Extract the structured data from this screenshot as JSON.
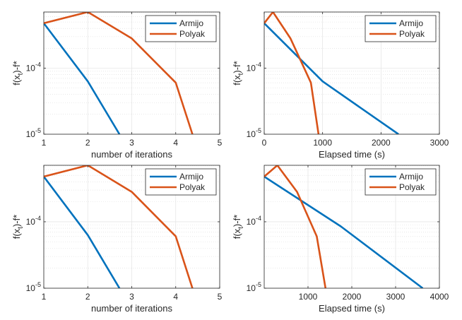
{
  "chart_data": [
    {
      "type": "line",
      "yscale": "log",
      "xlabel": "number of iterations",
      "ylabel_main": "f(x",
      "ylabel_sub": "t",
      "ylabel_tail": ")-f*",
      "xlim": [
        1,
        5
      ],
      "ylim_exp": [
        -5,
        -3.15
      ],
      "xticks": [
        1,
        2,
        3,
        4,
        5
      ],
      "xtick_labels": [
        "1",
        "2",
        "3",
        "4",
        "5"
      ],
      "yticks_exp": [
        -5,
        -4
      ],
      "ytick_base": "10",
      "ytick_exponents": [
        "-5",
        "-4"
      ],
      "grid": true,
      "legend_position": "top-right",
      "series": [
        {
          "name": "Armijo",
          "color": "#0072BD",
          "x": [
            1,
            2,
            2.72
          ],
          "y_exp": [
            -3.32,
            -4.2,
            -5.0
          ]
        },
        {
          "name": "Polyak",
          "color": "#D95319",
          "x": [
            1,
            2,
            3,
            4,
            4.38
          ],
          "y_exp": [
            -3.32,
            -3.15,
            -3.55,
            -4.22,
            -5.0
          ]
        }
      ]
    },
    {
      "type": "line",
      "yscale": "log",
      "xlabel": "Elapsed time (s)",
      "ylabel_main": "f(x",
      "ylabel_sub": "t",
      "ylabel_tail": ")-f*",
      "xlim": [
        0,
        3000
      ],
      "ylim_exp": [
        -5,
        -3.15
      ],
      "xticks": [
        0,
        1000,
        2000,
        3000
      ],
      "xtick_labels": [
        "0",
        "1000",
        "2000",
        "3000"
      ],
      "yticks_exp": [
        -5,
        -4
      ],
      "ytick_base": "10",
      "ytick_exponents": [
        "-5",
        "-4"
      ],
      "grid": true,
      "legend_position": "top-right",
      "series": [
        {
          "name": "Armijo",
          "color": "#0072BD",
          "x": [
            0,
            1000,
            2300
          ],
          "y_exp": [
            -3.32,
            -4.2,
            -5.0
          ]
        },
        {
          "name": "Polyak",
          "color": "#D95319",
          "x": [
            0,
            150,
            450,
            800,
            930
          ],
          "y_exp": [
            -3.32,
            -3.15,
            -3.55,
            -4.22,
            -5.0
          ]
        }
      ]
    },
    {
      "type": "line",
      "yscale": "log",
      "xlabel": "number of iterations",
      "ylabel_main": "f(x",
      "ylabel_sub": "t",
      "ylabel_tail": ")-f*",
      "xlim": [
        1,
        5
      ],
      "ylim_exp": [
        -5,
        -3.15
      ],
      "xticks": [
        1,
        2,
        3,
        4,
        5
      ],
      "xtick_labels": [
        "1",
        "2",
        "3",
        "4",
        "5"
      ],
      "yticks_exp": [
        -5,
        -4
      ],
      "ytick_base": "10",
      "ytick_exponents": [
        "-5",
        "-4"
      ],
      "grid": true,
      "legend_position": "top-right",
      "series": [
        {
          "name": "Armijo",
          "color": "#0072BD",
          "x": [
            1,
            2,
            2.72
          ],
          "y_exp": [
            -3.32,
            -4.2,
            -5.0
          ]
        },
        {
          "name": "Polyak",
          "color": "#D95319",
          "x": [
            1,
            2,
            3,
            4,
            4.38
          ],
          "y_exp": [
            -3.32,
            -3.15,
            -3.55,
            -4.22,
            -5.0
          ]
        }
      ]
    },
    {
      "type": "line",
      "yscale": "log",
      "xlabel": "Elapsed time (s)",
      "ylabel_main": "f(x",
      "ylabel_sub": "t",
      "ylabel_tail": ")-f*",
      "xlim": [
        0,
        4000
      ],
      "ylim_exp": [
        -5,
        -3.15
      ],
      "xticks": [
        1000,
        2000,
        3000,
        4000
      ],
      "xtick_labels": [
        "1000",
        "2000",
        "3000",
        "4000"
      ],
      "yticks_exp": [
        -5,
        -4
      ],
      "ytick_base": "10",
      "ytick_exponents": [
        "-5",
        "-4"
      ],
      "grid": true,
      "legend_position": "top-right",
      "series": [
        {
          "name": "Armijo",
          "color": "#0072BD",
          "x": [
            0,
            1750,
            3620
          ],
          "y_exp": [
            -3.32,
            -4.07,
            -5.0
          ]
        },
        {
          "name": "Polyak",
          "color": "#D95319",
          "x": [
            0,
            300,
            750,
            1200,
            1400
          ],
          "y_exp": [
            -3.32,
            -3.15,
            -3.55,
            -4.22,
            -5.0
          ]
        }
      ]
    }
  ]
}
